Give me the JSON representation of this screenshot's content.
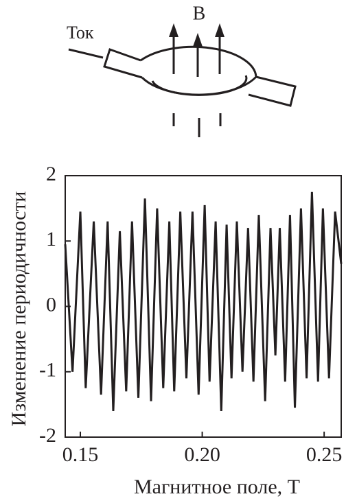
{
  "diagram": {
    "current_label": "Ток",
    "field_label": "B"
  },
  "chart_data": {
    "type": "line",
    "ylabel": "Изменение периодичности",
    "xlabel": "Магнитное поле, T",
    "xlim": [
      0.1438,
      0.257
    ],
    "ylim": [
      -2,
      2
    ],
    "xticks": [
      0.15,
      {
        "value": 0.2,
        "label": "0.20"
      },
      0.25
    ],
    "yticks": [
      -2,
      -1,
      0,
      1,
      2
    ],
    "color": "#231f20",
    "x": [
      0.1438,
      0.1468,
      0.15,
      0.1522,
      0.1555,
      0.1585,
      0.1612,
      0.1635,
      0.1662,
      0.1688,
      0.1712,
      0.1738,
      0.1765,
      0.179,
      0.1815,
      0.184,
      0.1865,
      0.1885,
      0.191,
      0.1935,
      0.196,
      0.1985,
      0.201,
      0.203,
      0.2055,
      0.2078,
      0.21,
      0.212,
      0.2142,
      0.2165,
      0.2188,
      0.221,
      0.2232,
      0.2258,
      0.228,
      0.23,
      0.2318,
      0.234,
      0.236,
      0.238,
      0.2405,
      0.2428,
      0.245,
      0.2475,
      0.2495,
      0.252,
      0.2545,
      0.257
    ],
    "values": [
      0.95,
      -1.0,
      1.45,
      -1.25,
      1.3,
      -1.35,
      1.3,
      -1.6,
      1.15,
      -1.3,
      1.3,
      -1.4,
      1.65,
      -1.45,
      1.5,
      -1.25,
      1.3,
      -1.3,
      1.45,
      -1.1,
      1.45,
      -1.35,
      1.55,
      -1.15,
      1.3,
      -1.6,
      1.25,
      -1.1,
      1.3,
      -1.0,
      1.2,
      -1.15,
      1.4,
      -1.45,
      1.2,
      -0.75,
      1.2,
      -1.15,
      1.4,
      -1.55,
      1.5,
      -1.1,
      1.75,
      -1.15,
      1.5,
      -1.1,
      1.45,
      0.65
    ]
  }
}
